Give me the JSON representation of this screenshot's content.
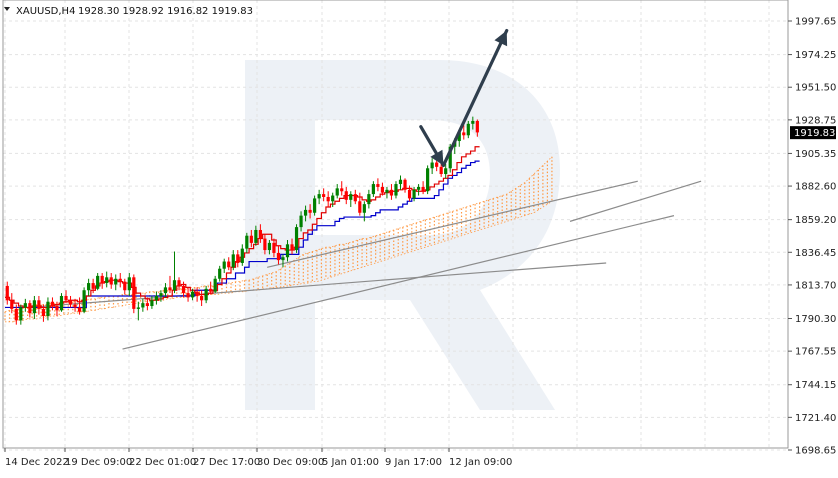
{
  "header": {
    "symbol": "XAUUSD,H4",
    "ohlc": "1928.30 1928.92 1916.82 1919.83"
  },
  "price_tag": "1919.83",
  "colors": {
    "bull": "#008000",
    "bear": "#ff0000",
    "tenkan": "#e00000",
    "kijun": "#0000cc",
    "cloud": "#ff9944",
    "channel": "#8c8c8c",
    "arrow": "#2f3e4d",
    "watermark": "#e8edf4",
    "price_tag_bg": "#000000"
  },
  "chart_data": {
    "type": "candlestick",
    "y_ticks": [
      "1997.65",
      "1974.25",
      "1951.50",
      "1928.75",
      "1905.35",
      "1882.60",
      "1859.20",
      "1836.45",
      "1813.70",
      "1790.30",
      "1767.55",
      "1744.15",
      "1721.40",
      "1698.65"
    ],
    "x_ticks": [
      "14 Dec 2022",
      "19 Dec 09:00",
      "22 Dec 01:00",
      "27 Dec 17:00",
      "30 Dec 09:00",
      "5 Jan 01:00",
      "9 Jan 17:00",
      "12 Jan 09:00"
    ],
    "ylim": [
      1698.65,
      2005
    ],
    "last_price": 1919.83,
    "grid": true,
    "indicators": [
      "Ichimoku tenkan-sen",
      "Ichimoku kijun-sen",
      "Ichimoku cloud"
    ],
    "candles": [
      [
        1813,
        1816,
        1800,
        1803
      ],
      [
        1803,
        1808,
        1794,
        1797
      ],
      [
        1797,
        1800,
        1786,
        1789
      ],
      [
        1789,
        1800,
        1786,
        1798
      ],
      [
        1798,
        1804,
        1795,
        1801
      ],
      [
        1801,
        1803,
        1791,
        1794
      ],
      [
        1794,
        1806,
        1790,
        1803
      ],
      [
        1803,
        1806,
        1793,
        1797
      ],
      [
        1797,
        1800,
        1788,
        1792
      ],
      [
        1792,
        1805,
        1789,
        1802
      ],
      [
        1802,
        1805,
        1796,
        1799
      ],
      [
        1799,
        1802,
        1792,
        1796
      ],
      [
        1796,
        1808,
        1795,
        1806
      ],
      [
        1806,
        1810,
        1801,
        1803
      ],
      [
        1803,
        1806,
        1798,
        1800
      ],
      [
        1800,
        1804,
        1795,
        1798
      ],
      [
        1798,
        1805,
        1793,
        1795
      ],
      [
        1795,
        1812,
        1794,
        1810
      ],
      [
        1810,
        1818,
        1806,
        1815
      ],
      [
        1815,
        1818,
        1808,
        1811
      ],
      [
        1811,
        1822,
        1810,
        1820
      ],
      [
        1820,
        1822,
        1811,
        1815
      ],
      [
        1815,
        1823,
        1812,
        1819
      ],
      [
        1819,
        1822,
        1811,
        1814
      ],
      [
        1814,
        1821,
        1810,
        1818
      ],
      [
        1818,
        1822,
        1812,
        1816
      ],
      [
        1816,
        1818,
        1807,
        1810
      ],
      [
        1810,
        1822,
        1806,
        1819
      ],
      [
        1819,
        1821,
        1794,
        1797
      ],
      [
        1797,
        1802,
        1789,
        1798
      ],
      [
        1798,
        1804,
        1795,
        1801
      ],
      [
        1801,
        1805,
        1796,
        1799
      ],
      [
        1799,
        1806,
        1797,
        1803
      ],
      [
        1803,
        1809,
        1800,
        1806
      ],
      [
        1806,
        1810,
        1802,
        1808
      ],
      [
        1808,
        1815,
        1805,
        1812
      ],
      [
        1812,
        1820,
        1808,
        1810
      ],
      [
        1810,
        1837,
        1808,
        1817
      ],
      [
        1817,
        1819,
        1810,
        1813
      ],
      [
        1813,
        1816,
        1805,
        1808
      ],
      [
        1808,
        1812,
        1802,
        1805
      ],
      [
        1805,
        1811,
        1803,
        1809
      ],
      [
        1809,
        1812,
        1802,
        1806
      ],
      [
        1806,
        1810,
        1799,
        1803
      ],
      [
        1803,
        1813,
        1801,
        1811
      ],
      [
        1811,
        1816,
        1807,
        1809
      ],
      [
        1809,
        1820,
        1808,
        1818
      ],
      [
        1818,
        1827,
        1816,
        1825
      ],
      [
        1825,
        1832,
        1822,
        1830
      ],
      [
        1830,
        1833,
        1824,
        1826
      ],
      [
        1826,
        1838,
        1824,
        1835
      ],
      [
        1835,
        1838,
        1826,
        1829
      ],
      [
        1829,
        1842,
        1827,
        1839
      ],
      [
        1839,
        1850,
        1836,
        1848
      ],
      [
        1848,
        1852,
        1840,
        1843
      ],
      [
        1843,
        1855,
        1841,
        1852
      ],
      [
        1852,
        1856,
        1843,
        1846
      ],
      [
        1846,
        1849,
        1835,
        1838
      ],
      [
        1838,
        1845,
        1835,
        1843
      ],
      [
        1843,
        1846,
        1833,
        1836
      ],
      [
        1836,
        1841,
        1828,
        1831
      ],
      [
        1831,
        1835,
        1826,
        1833
      ],
      [
        1833,
        1845,
        1830,
        1842
      ],
      [
        1842,
        1846,
        1835,
        1838
      ],
      [
        1838,
        1856,
        1836,
        1854
      ],
      [
        1854,
        1865,
        1851,
        1862
      ],
      [
        1862,
        1869,
        1858,
        1866
      ],
      [
        1866,
        1870,
        1860,
        1864
      ],
      [
        1864,
        1876,
        1862,
        1874
      ],
      [
        1874,
        1880,
        1870,
        1877
      ],
      [
        1877,
        1881,
        1872,
        1875
      ],
      [
        1875,
        1879,
        1868,
        1872
      ],
      [
        1872,
        1878,
        1868,
        1876
      ],
      [
        1876,
        1884,
        1874,
        1881
      ],
      [
        1881,
        1886,
        1876,
        1879
      ],
      [
        1879,
        1882,
        1870,
        1873
      ],
      [
        1873,
        1879,
        1868,
        1877
      ],
      [
        1877,
        1880,
        1870,
        1872
      ],
      [
        1872,
        1878,
        1862,
        1864
      ],
      [
        1864,
        1872,
        1858,
        1870
      ],
      [
        1870,
        1880,
        1867,
        1877
      ],
      [
        1877,
        1886,
        1875,
        1884
      ],
      [
        1884,
        1888,
        1879,
        1882
      ],
      [
        1882,
        1885,
        1876,
        1878
      ],
      [
        1878,
        1882,
        1874,
        1880
      ],
      [
        1880,
        1884,
        1873,
        1876
      ],
      [
        1876,
        1886,
        1874,
        1884
      ],
      [
        1884,
        1890,
        1880,
        1887
      ],
      [
        1887,
        1888,
        1878,
        1880
      ],
      [
        1880,
        1883,
        1872,
        1874
      ],
      [
        1874,
        1882,
        1872,
        1880
      ],
      [
        1880,
        1884,
        1876,
        1882
      ],
      [
        1882,
        1886,
        1877,
        1879
      ],
      [
        1879,
        1897,
        1877,
        1895
      ],
      [
        1895,
        1902,
        1891,
        1899
      ],
      [
        1899,
        1903,
        1893,
        1896
      ],
      [
        1896,
        1900,
        1889,
        1891
      ],
      [
        1891,
        1898,
        1888,
        1895
      ],
      [
        1895,
        1912,
        1892,
        1910
      ],
      [
        1910,
        1916,
        1905,
        1914
      ],
      [
        1914,
        1922,
        1910,
        1920
      ],
      [
        1920,
        1925,
        1915,
        1918
      ],
      [
        1918,
        1928,
        1916,
        1926
      ],
      [
        1926,
        1931,
        1922,
        1928
      ],
      [
        1928,
        1929,
        1917,
        1920
      ]
    ],
    "tenkan": [
      1805,
      1803,
      1801,
      1799,
      1798,
      1798,
      1799,
      1799,
      1798,
      1798,
      1799,
      1800,
      1801,
      1802,
      1803,
      1803,
      1802,
      1803,
      1806,
      1810,
      1813,
      1815,
      1816,
      1817,
      1817,
      1816,
      1815,
      1815,
      1812,
      1808,
      1806,
      1804,
      1803,
      1803,
      1804,
      1805,
      1806,
      1810,
      1813,
      1814,
      1812,
      1810,
      1808,
      1807,
      1807,
      1808,
      1810,
      1814,
      1818,
      1822,
      1826,
      1830,
      1833,
      1836,
      1839,
      1842,
      1846,
      1849,
      1849,
      1845,
      1841,
      1839,
      1838,
      1838,
      1840,
      1846,
      1850,
      1852,
      1856,
      1860,
      1864,
      1868,
      1870,
      1872,
      1874,
      1876,
      1876,
      1876,
      1875,
      1873,
      1872,
      1873,
      1875,
      1877,
      1878,
      1879,
      1879,
      1880,
      1881,
      1881,
      1880,
      1879,
      1879,
      1880,
      1882,
      1884,
      1886,
      1888,
      1890,
      1894,
      1899,
      1903,
      1905,
      1907,
      1910
    ],
    "kijun": [
      1798,
      1798,
      1798,
      1798,
      1798,
      1798,
      1798,
      1798,
      1798,
      1798,
      1798,
      1798,
      1798,
      1798,
      1798,
      1798,
      1798,
      1798,
      1806,
      1806,
      1806,
      1806,
      1806,
      1806,
      1806,
      1806,
      1806,
      1806,
      1806,
      1806,
      1806,
      1806,
      1806,
      1806,
      1806,
      1806,
      1806,
      1806,
      1806,
      1806,
      1806,
      1806,
      1810,
      1810,
      1810,
      1810,
      1810,
      1815,
      1815,
      1818,
      1818,
      1822,
      1822,
      1826,
      1830,
      1830,
      1830,
      1830,
      1832,
      1832,
      1832,
      1835,
      1835,
      1835,
      1835,
      1840,
      1845,
      1849,
      1852,
      1855,
      1855,
      1855,
      1855,
      1858,
      1860,
      1861,
      1861,
      1861,
      1861,
      1861,
      1861,
      1862,
      1864,
      1866,
      1866,
      1866,
      1866,
      1868,
      1870,
      1872,
      1874,
      1874,
      1874,
      1874,
      1874,
      1876,
      1880,
      1884,
      1888,
      1890,
      1892,
      1895,
      1897,
      1899,
      1900
    ],
    "cloud": [
      [
        1795,
        1788
      ],
      [
        1796,
        1788
      ],
      [
        1796,
        1788
      ],
      [
        1797,
        1789
      ],
      [
        1798,
        1789
      ],
      [
        1798,
        1790
      ],
      [
        1799,
        1790
      ],
      [
        1800,
        1790
      ],
      [
        1800,
        1791
      ],
      [
        1800,
        1791
      ],
      [
        1801,
        1792
      ],
      [
        1801,
        1792
      ],
      [
        1801,
        1792
      ],
      [
        1802,
        1793
      ],
      [
        1802,
        1793
      ],
      [
        1802,
        1794
      ],
      [
        1803,
        1794
      ],
      [
        1803,
        1795
      ],
      [
        1803,
        1795
      ],
      [
        1804,
        1796
      ],
      [
        1804,
        1796
      ],
      [
        1805,
        1797
      ],
      [
        1805,
        1797
      ],
      [
        1806,
        1798
      ],
      [
        1806,
        1798
      ],
      [
        1806,
        1799
      ],
      [
        1807,
        1799
      ],
      [
        1807,
        1800
      ],
      [
        1807,
        1800
      ],
      [
        1808,
        1801
      ],
      [
        1808,
        1801
      ],
      [
        1808,
        1802
      ],
      [
        1809,
        1802
      ],
      [
        1809,
        1803
      ],
      [
        1809,
        1803
      ],
      [
        1810,
        1803
      ],
      [
        1810,
        1804
      ],
      [
        1810,
        1804
      ],
      [
        1811,
        1805
      ],
      [
        1811,
        1805
      ],
      [
        1811,
        1805
      ],
      [
        1812,
        1806
      ],
      [
        1812,
        1806
      ],
      [
        1812,
        1806
      ],
      [
        1813,
        1806
      ],
      [
        1813,
        1807
      ],
      [
        1813,
        1807
      ],
      [
        1814,
        1807
      ],
      [
        1814,
        1808
      ],
      [
        1815,
        1808
      ],
      [
        1815,
        1808
      ],
      [
        1816,
        1809
      ],
      [
        1816,
        1809
      ],
      [
        1817,
        1809
      ],
      [
        1817,
        1810
      ],
      [
        1818,
        1810
      ],
      [
        1819,
        1810
      ],
      [
        1820,
        1811
      ],
      [
        1821,
        1811
      ],
      [
        1822,
        1812
      ],
      [
        1823,
        1812
      ],
      [
        1825,
        1812
      ],
      [
        1827,
        1813
      ],
      [
        1829,
        1813
      ],
      [
        1831,
        1814
      ],
      [
        1833,
        1814
      ],
      [
        1835,
        1815
      ],
      [
        1836,
        1815
      ],
      [
        1837,
        1816
      ],
      [
        1838,
        1816
      ],
      [
        1839,
        1817
      ],
      [
        1840,
        1818
      ],
      [
        1840,
        1819
      ],
      [
        1841,
        1820
      ],
      [
        1842,
        1821
      ],
      [
        1842,
        1822
      ],
      [
        1843,
        1823
      ],
      [
        1844,
        1824
      ],
      [
        1845,
        1825
      ],
      [
        1846,
        1826
      ],
      [
        1846,
        1827
      ],
      [
        1847,
        1828
      ],
      [
        1848,
        1829
      ],
      [
        1849,
        1830
      ],
      [
        1850,
        1831
      ],
      [
        1851,
        1832
      ],
      [
        1852,
        1833
      ],
      [
        1853,
        1834
      ],
      [
        1854,
        1835
      ],
      [
        1855,
        1836
      ],
      [
        1856,
        1837
      ],
      [
        1857,
        1838
      ],
      [
        1858,
        1839
      ],
      [
        1859,
        1840
      ],
      [
        1860,
        1841
      ],
      [
        1861,
        1842
      ],
      [
        1862,
        1843
      ],
      [
        1863,
        1844
      ],
      [
        1864,
        1845
      ],
      [
        1865,
        1846
      ],
      [
        1866,
        1847
      ],
      [
        1867,
        1848
      ],
      [
        1868,
        1849
      ],
      [
        1869,
        1850
      ],
      [
        1870,
        1851
      ],
      [
        1871,
        1852
      ],
      [
        1872,
        1853
      ],
      [
        1873,
        1854
      ],
      [
        1874,
        1855
      ],
      [
        1875,
        1856
      ],
      [
        1876,
        1857
      ],
      [
        1877,
        1858
      ],
      [
        1879,
        1859
      ],
      [
        1881,
        1860
      ],
      [
        1883,
        1861
      ],
      [
        1885,
        1862
      ],
      [
        1888,
        1863
      ],
      [
        1891,
        1864
      ],
      [
        1894,
        1866
      ],
      [
        1897,
        1868
      ],
      [
        1900,
        1870
      ],
      [
        1903,
        1872
      ]
    ],
    "channels": [
      [
        [
          5,
          1798
        ],
        [
          133,
          1829
        ]
      ],
      [
        [
          26,
          1769
        ],
        [
          148,
          1862
        ]
      ],
      [
        [
          58,
          1826
        ],
        [
          140,
          1886
        ]
      ],
      [
        [
          125,
          1858
        ],
        [
          154,
          1886
        ]
      ]
    ],
    "forecast_path": [
      [
        92,
        1924
      ],
      [
        97,
        1897
      ],
      [
        111,
        1991
      ]
    ]
  }
}
